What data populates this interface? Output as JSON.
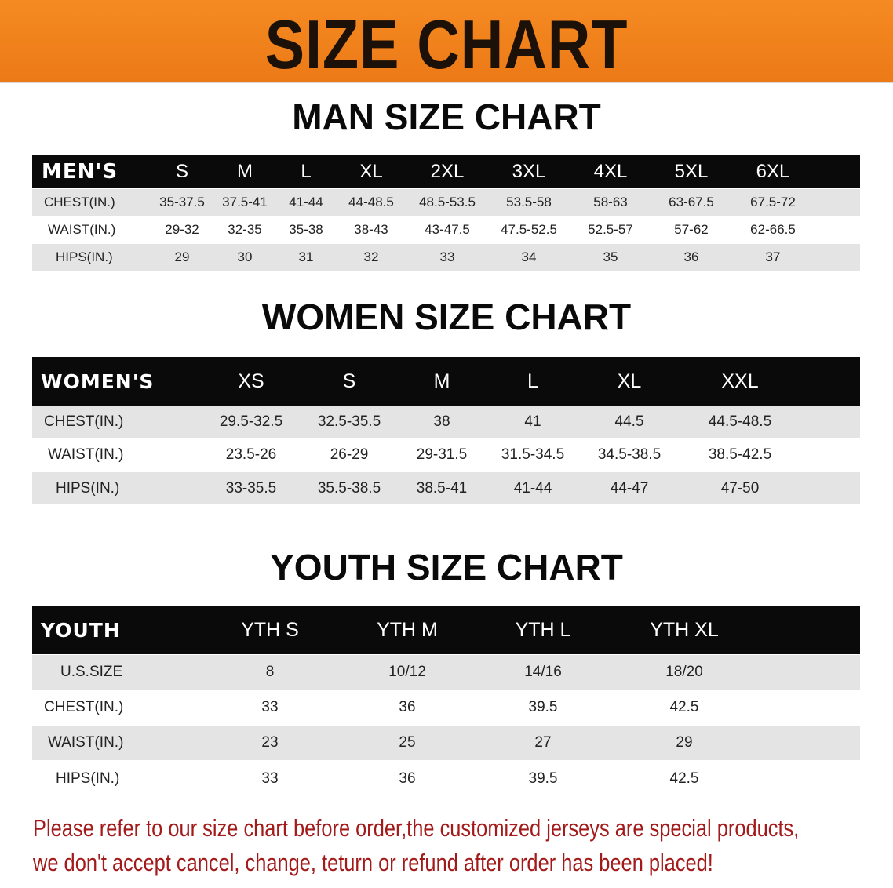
{
  "title": "SIZE CHART",
  "colors": {
    "banner": "#f07f1d",
    "header_row": "#0a0a0a",
    "stripe": "#e4e4e4",
    "note": "#a31a1a"
  },
  "men": {
    "heading": "MAN SIZE CHART",
    "header": [
      "MEN'S",
      "S",
      "M",
      "L",
      "XL",
      "2XL",
      "3XL",
      "4XL",
      "5XL",
      "6XL"
    ],
    "rows": [
      [
        "CHEST(IN.)",
        "35-37.5",
        "37.5-41",
        "41-44",
        "44-48.5",
        "48.5-53.5",
        "53.5-58",
        "58-63",
        "63-67.5",
        "67.5-72"
      ],
      [
        "WAIST(IN.)",
        "29-32",
        "32-35",
        "35-38",
        "38-43",
        "43-47.5",
        "47.5-52.5",
        "52.5-57",
        "57-62",
        "62-66.5"
      ],
      [
        "HIPS(IN.)",
        "29",
        "30",
        "31",
        "32",
        "33",
        "34",
        "35",
        "36",
        "37"
      ]
    ]
  },
  "women": {
    "heading": "WOMEN SIZE CHART",
    "header": [
      "WOMEN'S",
      "XS",
      "S",
      "M",
      "L",
      "XL",
      "XXL"
    ],
    "rows": [
      [
        "CHEST(IN.)",
        "29.5-32.5",
        "32.5-35.5",
        "38",
        "41",
        "44.5",
        "44.5-48.5"
      ],
      [
        "WAIST(IN.)",
        "23.5-26",
        "26-29",
        "29-31.5",
        "31.5-34.5",
        "34.5-38.5",
        "38.5-42.5"
      ],
      [
        "HIPS(IN.)",
        "33-35.5",
        "35.5-38.5",
        "38.5-41",
        "41-44",
        "44-47",
        "47-50"
      ]
    ]
  },
  "youth": {
    "heading": "YOUTH SIZE CHART",
    "header": [
      "YOUTH",
      "YTH S",
      "YTH M",
      "YTH L",
      "YTH XL"
    ],
    "rows": [
      [
        "U.S.SIZE",
        "8",
        "10/12",
        "14/16",
        "18/20"
      ],
      [
        "CHEST(IN.)",
        "33",
        "36",
        "39.5",
        "42.5"
      ],
      [
        "WAIST(IN.)",
        "23",
        "25",
        "27",
        "29"
      ],
      [
        "HIPS(IN.)",
        "33",
        "36",
        "39.5",
        "42.5"
      ]
    ]
  },
  "note": {
    "line1": "Please refer to our size chart before order,the customized jerseys are special products,",
    "line2": "we don't accept cancel, change, teturn or refund after order has been placed!"
  }
}
